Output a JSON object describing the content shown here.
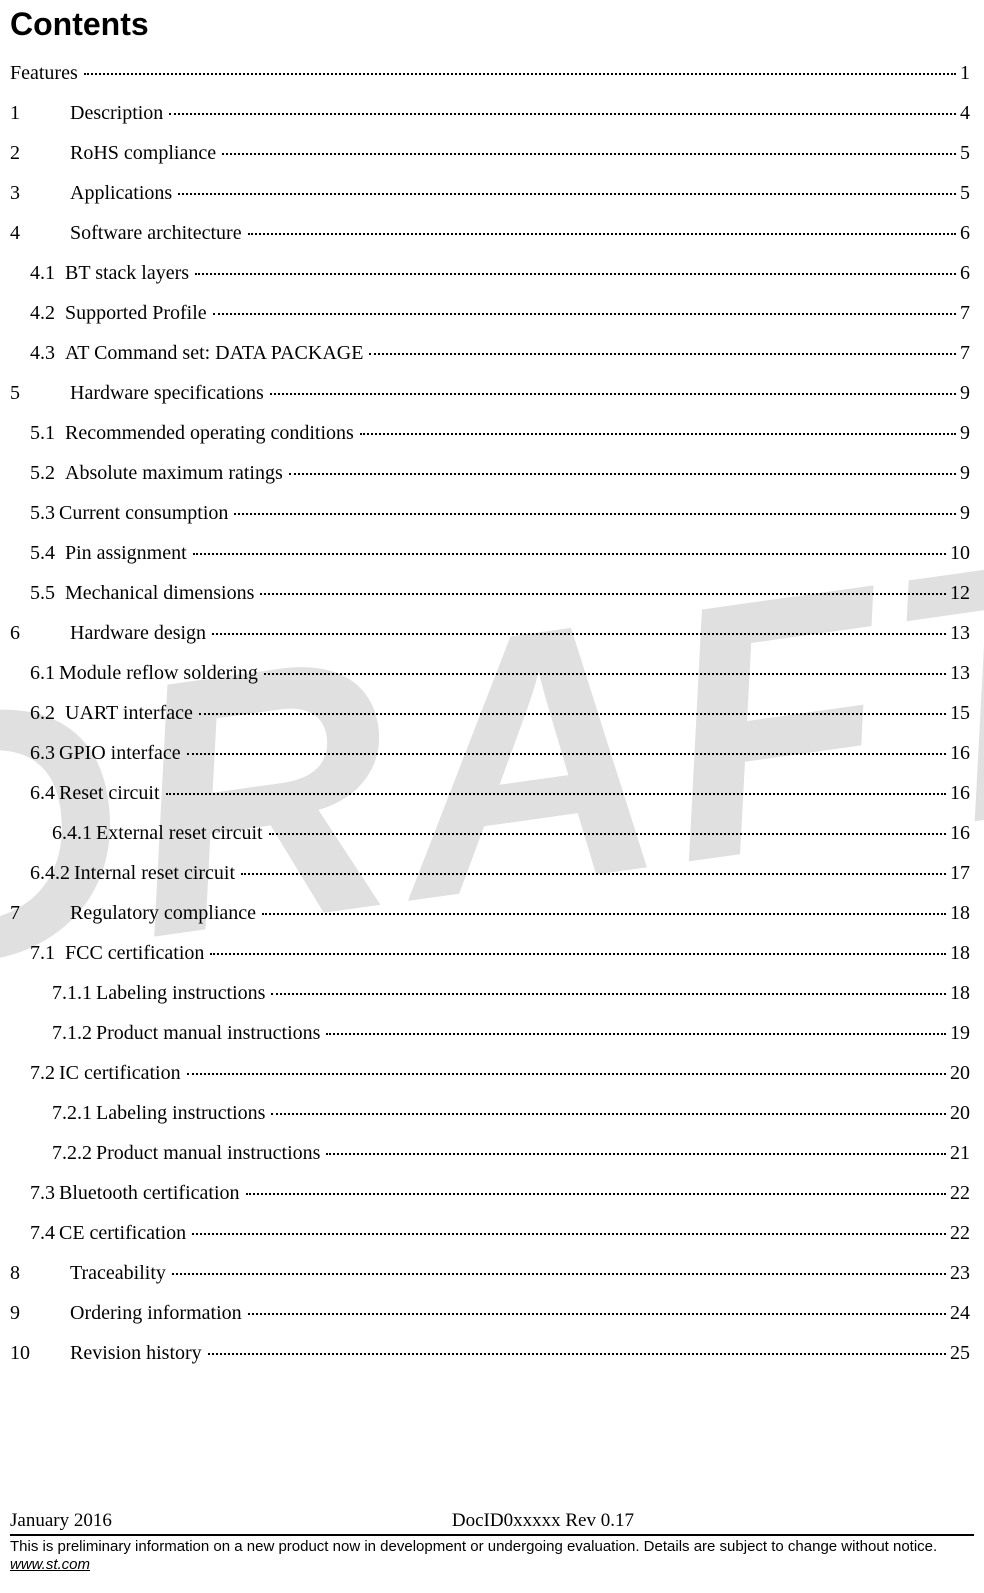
{
  "title": "Contents",
  "watermark": "DRAFT",
  "toc": [
    {
      "level": 0,
      "num": "",
      "label": "Features",
      "page": "1"
    },
    {
      "level": 1,
      "num": "1",
      "label": "Description",
      "page": "4"
    },
    {
      "level": 1,
      "num": "2",
      "label": "RoHS compliance",
      "page": "5"
    },
    {
      "level": 1,
      "num": "3",
      "label": "Applications",
      "page": "5"
    },
    {
      "level": 1,
      "num": "4",
      "label": "Software architecture",
      "page": "6"
    },
    {
      "level": 2,
      "num": "4.1",
      "label": "BT stack layers",
      "page": "6"
    },
    {
      "level": 2,
      "num": "4.2",
      "label": "Supported Profile",
      "page": "7"
    },
    {
      "level": 2,
      "num": "4.3",
      "label": "AT Command set: DATA PACKAGE",
      "page": "7"
    },
    {
      "level": 1,
      "num": "5",
      "label": "Hardware specifications",
      "page": "9"
    },
    {
      "level": 2,
      "num": "5.1",
      "label": "Recommended operating conditions",
      "page": "9"
    },
    {
      "level": 2,
      "num": "5.2",
      "label": "Absolute maximum ratings",
      "page": "9"
    },
    {
      "level": 2,
      "num": "5.3",
      "label": "Current consumption",
      "page": "9",
      "tight": true
    },
    {
      "level": 2,
      "num": "5.4",
      "label": "Pin assignment",
      "page": "10"
    },
    {
      "level": 2,
      "num": "5.5",
      "label": "Mechanical dimensions",
      "page": "12"
    },
    {
      "level": 1,
      "num": "6",
      "label": "Hardware design",
      "page": "13"
    },
    {
      "level": 2,
      "num": "6.1",
      "label": "Module reflow soldering",
      "page": "13",
      "tight": true
    },
    {
      "level": 2,
      "num": "6.2",
      "label": "UART interface",
      "page": "15"
    },
    {
      "level": 2,
      "num": "6.3",
      "label": "GPIO interface",
      "page": "16",
      "tight": true
    },
    {
      "level": 2,
      "num": "6.4",
      "label": "Reset circuit",
      "page": "16",
      "tight": true
    },
    {
      "level": 3,
      "num": "6.4.1",
      "label": "External reset circuit",
      "page": "16",
      "tight": true
    },
    {
      "level": 2,
      "num": "6.4.2",
      "label": "Internal reset circuit",
      "page": "17",
      "tight": true
    },
    {
      "level": 1,
      "num": "7",
      "label": "Regulatory compliance",
      "page": "18"
    },
    {
      "level": 2,
      "num": "7.1",
      "label": "FCC  certification",
      "page": "18"
    },
    {
      "level": 3,
      "num": "7.1.1",
      "label": "Labeling instructions",
      "page": "18",
      "tight": true
    },
    {
      "level": 3,
      "num": "7.1.2",
      "label": "Product manual instructions",
      "page": "19",
      "tight": true
    },
    {
      "level": 2,
      "num": "7.2",
      "label": "IC certification",
      "page": "20",
      "tight": true
    },
    {
      "level": 3,
      "num": "7.2.1",
      "label": "Labeling instructions",
      "page": "20",
      "tight": true
    },
    {
      "level": 3,
      "num": "7.2.2",
      "label": "Product manual instructions",
      "page": "21",
      "tight": true
    },
    {
      "level": 2,
      "num": "7.3",
      "label": "Bluetooth certification",
      "page": "22",
      "tight": true
    },
    {
      "level": 2,
      "num": "7.4",
      "label": "CE certification",
      "page": "22",
      "tight": true
    },
    {
      "level": 1,
      "num": "8",
      "label": "Traceability",
      "page": "23"
    },
    {
      "level": 1,
      "num": "9",
      "label": "Ordering information",
      "page": "24"
    },
    {
      "level": 1,
      "num": "10",
      "label": "Revision history",
      "page": "25"
    }
  ],
  "footer": {
    "left": "January  2016",
    "center": "DocID0xxxxx Rev 0.17",
    "note_prefix": "This is preliminary information on a new product now in development or undergoing   evaluation.  Details are subject to change without notice. ",
    "note_link": "www.st.com"
  }
}
